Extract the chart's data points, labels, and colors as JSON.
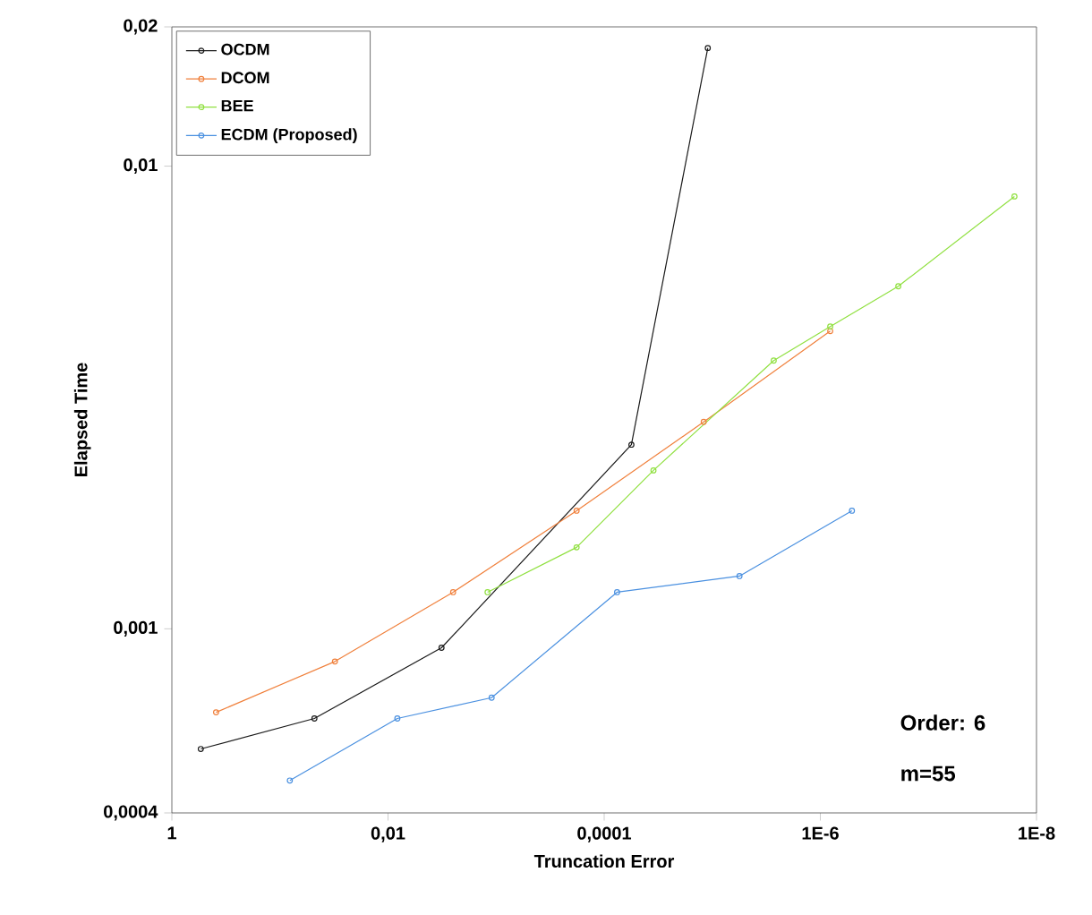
{
  "chart_data": {
    "type": "line",
    "xlabel": "Truncation Error",
    "ylabel": "Elapsed Time",
    "log": "xy",
    "legend": "top left",
    "marker": "circle",
    "grid": false,
    "xlim": [
      1,
      1e-08
    ],
    "xticks": [
      1,
      {
        "value": 0.01,
        "label": "0,01"
      },
      {
        "value": 0.0001,
        "label": "0,0001"
      },
      {
        "value": 1e-06,
        "label": "1E-6"
      },
      {
        "value": 1e-08,
        "label": "1E-8"
      }
    ],
    "ylim": [
      0.0004,
      0.02
    ],
    "yticks": [
      {
        "value": 0.0004,
        "label": "0,0004"
      },
      {
        "value": 0.001,
        "label": "0,001"
      },
      {
        "value": 0.01,
        "label": "0,01"
      },
      {
        "value": 0.02,
        "label": "0,02"
      }
    ],
    "annotations": [
      "Order: 6",
      "m=55"
    ],
    "series": [
      {
        "name": "OCDM",
        "color": "#1a1a1a",
        "x": [
          0.54,
          0.048,
          0.0032,
          5.6e-05,
          1.1e-05
        ],
        "values": [
          0.00055,
          0.00064,
          0.00091,
          0.0025,
          0.018
        ]
      },
      {
        "name": "DCOM",
        "color": "#f0803c",
        "x": [
          0.39,
          0.031,
          0.0025,
          0.00018,
          1.2e-05,
          8.1e-07
        ],
        "values": [
          0.00066,
          0.00085,
          0.0012,
          0.0018,
          0.0028,
          0.0044
        ]
      },
      {
        "name": "BEE",
        "color": "#90e040",
        "x": [
          0.0012,
          0.00018,
          3.5e-05,
          2.7e-06,
          8.1e-07,
          1.9e-07,
          1.6e-08
        ],
        "values": [
          0.0012,
          0.0015,
          0.0022,
          0.0038,
          0.0045,
          0.0055,
          0.0086
        ]
      },
      {
        "name": "ECDM (Proposed)",
        "color": "#4a90e0",
        "x": [
          0.081,
          0.0082,
          0.0011,
          7.6e-05,
          5.6e-06,
          5.1e-07
        ],
        "values": [
          0.00047,
          0.00064,
          0.00071,
          0.0012,
          0.0013,
          0.0018
        ]
      }
    ]
  }
}
